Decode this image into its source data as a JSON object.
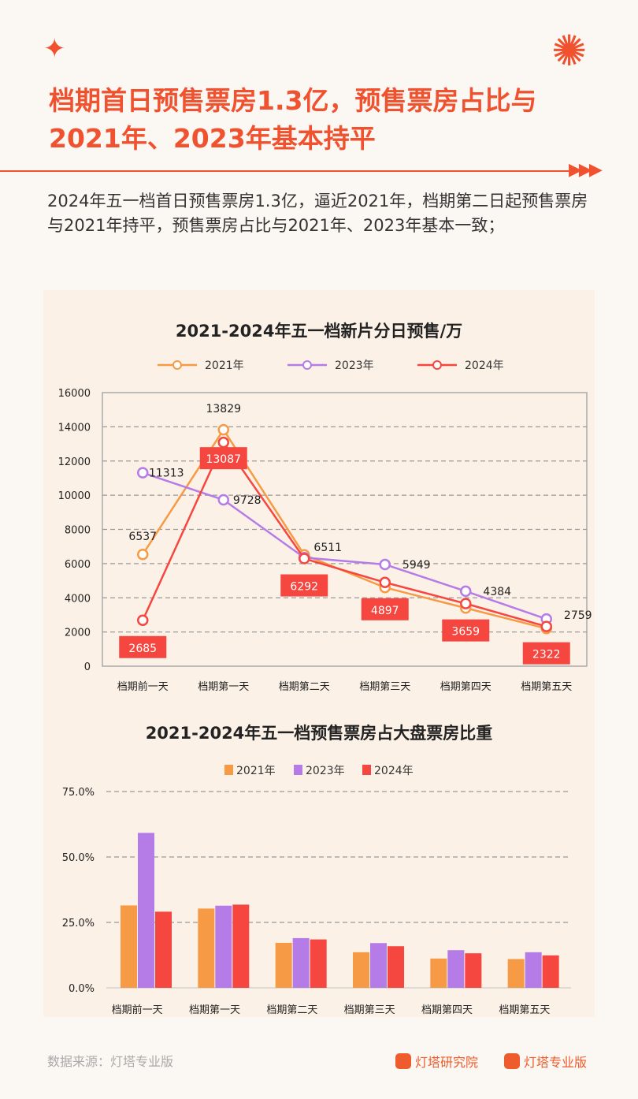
{
  "title": "档期首日预售票房1.3亿，预售票房占比与2021年、2023年基本持平",
  "subtitle": "2024年五一档首日预售票房1.3亿，逼近2021年，档期第二日起预售票房与2021年持平，预售票房占比与2021年、2023年基本一致；",
  "source": "数据来源：灯塔专业版",
  "logos": [
    "灯塔研究院",
    "灯塔专业版"
  ],
  "colors": {
    "2021年": "#f79a45",
    "2023年": "#b57be6",
    "2024年": "#f5473f",
    "accent": "#f0512f"
  },
  "chart_data": [
    {
      "type": "line",
      "title": "2021-2024年五一档新片分日预售/万",
      "categories": [
        "档期前一天",
        "档期第一天",
        "档期第二天",
        "档期第三天",
        "档期第四天",
        "档期第五天"
      ],
      "ylim": [
        0,
        16000
      ],
      "yticks": [
        0,
        2000,
        4000,
        6000,
        8000,
        10000,
        12000,
        14000,
        16000
      ],
      "grid": true,
      "legend": "top",
      "series": [
        {
          "name": "2021年",
          "values": [
            6537,
            13829,
            6511,
            4600,
            3400,
            2200
          ],
          "labels": [
            "6537",
            "13829",
            "6511",
            "",
            "",
            ""
          ]
        },
        {
          "name": "2023年",
          "values": [
            11313,
            9728,
            6350,
            5949,
            4384,
            2759
          ],
          "labels": [
            "11313",
            "9728",
            "",
            "5949",
            "4384",
            "2759"
          ]
        },
        {
          "name": "2024年",
          "values": [
            2685,
            13087,
            6292,
            4897,
            3659,
            2322
          ],
          "labels": [
            "2685",
            "13087",
            "6292",
            "4897",
            "3659",
            "2322"
          ]
        }
      ]
    },
    {
      "type": "bar",
      "title": "2021-2024年五一档预售票房占大盘票房比重",
      "categories": [
        "档期前一天",
        "档期第一天",
        "档期第二天",
        "档期第三天",
        "档期第四天",
        "档期第五天"
      ],
      "ylim": [
        0,
        75
      ],
      "yticks": [
        "0.0%",
        "25.0%",
        "50.0%",
        "75.0%"
      ],
      "grid": true,
      "legend": "top",
      "series": [
        {
          "name": "2021年",
          "values": [
            31.5,
            30.3,
            17.2,
            13.6,
            11.2,
            11.0
          ]
        },
        {
          "name": "2023年",
          "values": [
            59.2,
            31.4,
            19.0,
            17.1,
            14.4,
            13.6
          ]
        },
        {
          "name": "2024年",
          "values": [
            29.1,
            31.8,
            18.5,
            15.9,
            13.2,
            12.4
          ]
        }
      ]
    }
  ]
}
